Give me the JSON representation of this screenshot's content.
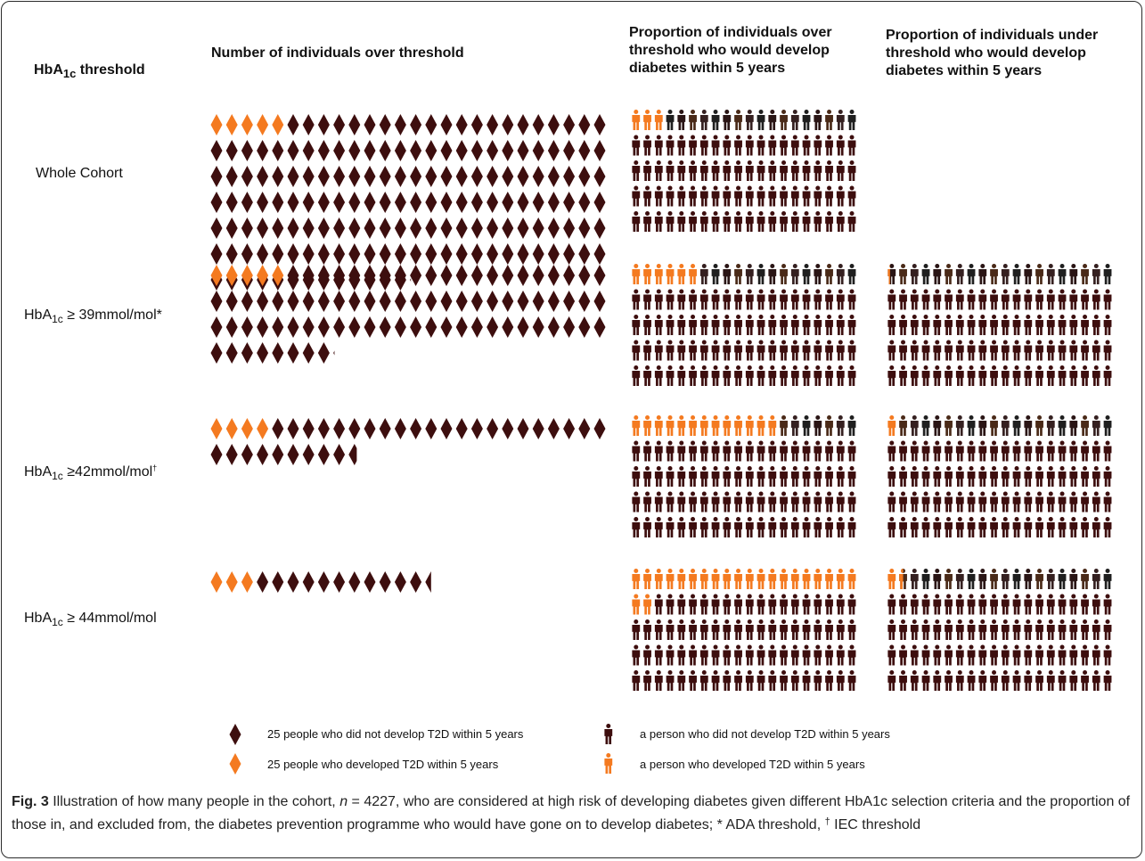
{
  "headers": {
    "threshold_prefix": "HbA",
    "threshold_sub": "1c",
    "threshold_suffix": " threshold",
    "count": "Number of individuals over threshold",
    "over": "Proportion of individuals over\nthreshold who would develop\ndiabetes within 5 years",
    "under": "Proportion of individuals under\nthreshold who would develop\ndiabetes within 5 years"
  },
  "rows": [
    {
      "label_main": "Whole Cohort",
      "label_sub": "",
      "label_rest": "",
      "label_sup": ""
    },
    {
      "label_main": "HbA",
      "label_sub": "1c",
      "label_rest": " ≥ 39mmol/mol*",
      "label_sup": ""
    },
    {
      "label_main": "HbA",
      "label_sub": "1c",
      "label_rest": " ≥42mmol/mol",
      "label_sup": "†"
    },
    {
      "label_main": "HbA",
      "label_sub": "1c",
      "label_rest": " ≥ 44mmol/mol",
      "label_sup": ""
    }
  ],
  "legend": {
    "diamond_no": "25 people who did not develop T2D within 5 years",
    "diamond_yes": "25 people who developed T2D within 5 years",
    "person_no": "a person who did not develop T2D within 5 years",
    "person_yes": "a person who developed T2D within 5 years"
  },
  "caption": {
    "fig": "Fig. 3",
    "text1": " Illustration of how many people in the cohort, ",
    "n": "n",
    "text2": " = 4227, who are considered at high risk of developing diabetes given different HbA1c selection criteria and the proportion of those in, and excluded from, the diabetes prevention programme who would have gone on to develop diabetes; * ADA threshold, ",
    "dagger": "†",
    "text3": " IEC threshold"
  },
  "colors": {
    "orange": "#f47a20",
    "dark": "#3d0e0e",
    "dark_variants": [
      "#3d0e0e",
      "#2a1515",
      "#4a2a18",
      "#352020",
      "#1f1f1f"
    ]
  },
  "icons": {
    "diamond": "diamond-icon",
    "person": "person-icon"
  },
  "chart_data": {
    "type": "pictogram",
    "units": {
      "diamond": 25,
      "person": 1
    },
    "rows": [
      {
        "name": "Whole Cohort",
        "over_threshold_diamonds": {
          "total": 169.08,
          "developed": 5
        },
        "over_proportion_per_100": 3,
        "under_proportion_per_100": null
      },
      {
        "name": "HbA1c ≥ 39mmol/mol*",
        "over_threshold_diamonds": {
          "total": 86.1,
          "developed": 5
        },
        "over_proportion_per_100": 6,
        "under_proportion_per_100": 0.3
      },
      {
        "name": "HbA1c ≥42mmol/mol†",
        "over_threshold_diamonds": {
          "total": 35.7,
          "developed": 4
        },
        "over_proportion_per_100": 13,
        "under_proportion_per_100": 1
      },
      {
        "name": "HbA1c ≥ 44mmol/mol",
        "over_threshold_diamonds": {
          "total": 14.5,
          "developed": 3
        },
        "over_proportion_per_100": 22,
        "under_proportion_per_100": 1.5
      }
    ]
  }
}
